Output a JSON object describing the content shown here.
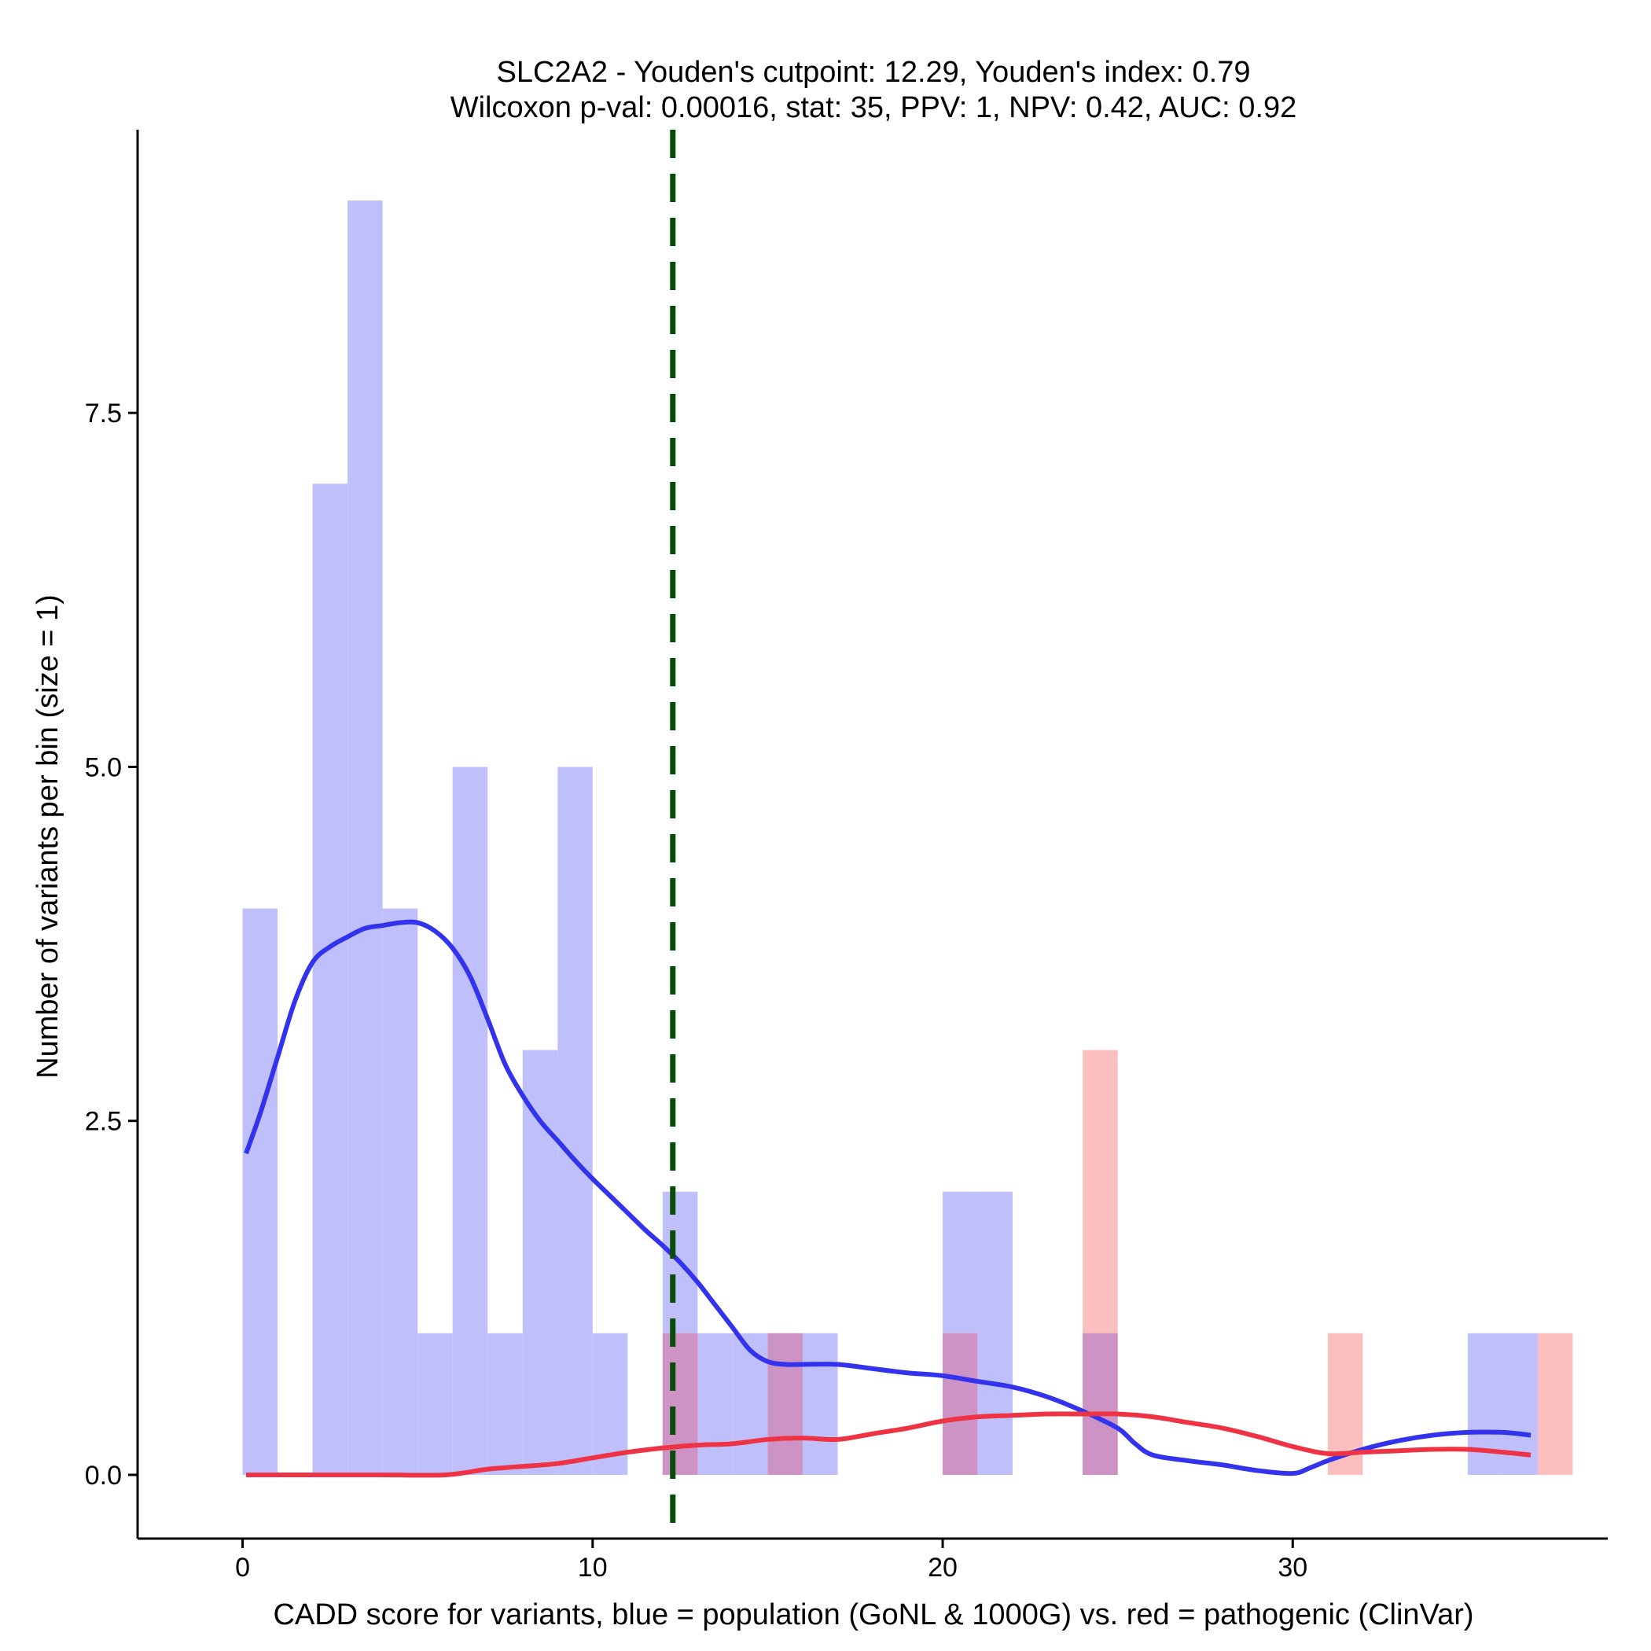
{
  "chart_data": {
    "type": "bar",
    "title_lines": [
      "SLC2A2 - Youden's cutpoint: 12.29, Youden's index: 0.79",
      "Wilcoxon p-val: 0.00016, stat: 35, PPV: 1, NPV: 0.42, AUC: 0.92"
    ],
    "xlabel": "CADD score for variants, blue = population (GoNL & 1000G) vs. red = pathogenic (ClinVar)",
    "ylabel": "Number of variants per bin (size = 1)",
    "xlim": [
      -3.0,
      39.0
    ],
    "ylim": [
      -0.45,
      9.5
    ],
    "x_ticks": [
      0,
      10,
      20,
      30
    ],
    "x_tick_labels": [
      "0",
      "10",
      "20",
      "30"
    ],
    "y_ticks": [
      0.0,
      2.5,
      5.0,
      7.5
    ],
    "y_tick_labels": [
      "0.0",
      "2.5",
      "5.0",
      "7.5"
    ],
    "bin_size": 1,
    "cutpoint": 12.29,
    "colors": {
      "population_bar": "#bfbffb",
      "pathogenic_bar": "#fcbfbf",
      "overlap_bar": "#cc93c4",
      "population_line": "#3333ee",
      "pathogenic_line": "#ee3344",
      "cutpoint_line": "#0a4a0a",
      "axis": "#000000"
    },
    "series": [
      {
        "name": "population (GoNL & 1000G)",
        "bins": [
          {
            "x0": 0,
            "count": 4
          },
          {
            "x0": 2,
            "count": 7
          },
          {
            "x0": 3,
            "count": 9
          },
          {
            "x0": 4,
            "count": 4
          },
          {
            "x0": 5,
            "count": 1
          },
          {
            "x0": 6,
            "count": 5
          },
          {
            "x0": 7,
            "count": 1
          },
          {
            "x0": 8,
            "count": 3
          },
          {
            "x0": 9,
            "count": 5
          },
          {
            "x0": 10,
            "count": 1
          },
          {
            "x0": 12,
            "count": 2
          },
          {
            "x0": 13,
            "count": 1
          },
          {
            "x0": 14,
            "count": 1
          },
          {
            "x0": 15,
            "count": 1
          },
          {
            "x0": 16,
            "count": 1
          },
          {
            "x0": 20,
            "count": 2
          },
          {
            "x0": 21,
            "count": 2
          },
          {
            "x0": 24,
            "count": 1
          },
          {
            "x0": 35,
            "count": 1
          },
          {
            "x0": 36,
            "count": 1
          }
        ],
        "density_curve": [
          [
            0.1,
            2.27
          ],
          [
            0.5,
            2.55
          ],
          [
            1.0,
            2.95
          ],
          [
            1.5,
            3.35
          ],
          [
            2.0,
            3.62
          ],
          [
            2.5,
            3.73
          ],
          [
            3.0,
            3.8
          ],
          [
            3.5,
            3.86
          ],
          [
            4.0,
            3.88
          ],
          [
            4.5,
            3.9
          ],
          [
            5.0,
            3.9
          ],
          [
            5.5,
            3.84
          ],
          [
            6.0,
            3.72
          ],
          [
            6.5,
            3.52
          ],
          [
            7.0,
            3.22
          ],
          [
            7.5,
            2.9
          ],
          [
            8.0,
            2.68
          ],
          [
            8.5,
            2.5
          ],
          [
            9.0,
            2.36
          ],
          [
            9.5,
            2.22
          ],
          [
            10.0,
            2.09
          ],
          [
            10.5,
            1.97
          ],
          [
            11.0,
            1.85
          ],
          [
            11.5,
            1.73
          ],
          [
            12.0,
            1.62
          ],
          [
            12.5,
            1.5
          ],
          [
            13.0,
            1.36
          ],
          [
            13.5,
            1.2
          ],
          [
            14.0,
            1.04
          ],
          [
            14.5,
            0.88
          ],
          [
            15.0,
            0.8
          ],
          [
            15.5,
            0.78
          ],
          [
            16.0,
            0.78
          ],
          [
            17.0,
            0.78
          ],
          [
            18.0,
            0.75
          ],
          [
            19.0,
            0.72
          ],
          [
            20.0,
            0.7
          ],
          [
            21.0,
            0.66
          ],
          [
            22.0,
            0.62
          ],
          [
            23.0,
            0.55
          ],
          [
            24.0,
            0.45
          ],
          [
            25.0,
            0.33
          ],
          [
            25.5,
            0.22
          ],
          [
            26.0,
            0.14
          ],
          [
            27.0,
            0.1
          ],
          [
            28.0,
            0.07
          ],
          [
            29.0,
            0.03
          ],
          [
            30.0,
            0.01
          ],
          [
            30.5,
            0.05
          ],
          [
            31.0,
            0.1
          ],
          [
            32.0,
            0.18
          ],
          [
            33.0,
            0.24
          ],
          [
            34.0,
            0.28
          ],
          [
            35.0,
            0.3
          ],
          [
            36.0,
            0.3
          ],
          [
            36.8,
            0.28
          ]
        ]
      },
      {
        "name": "pathogenic (ClinVar)",
        "bins": [
          {
            "x0": 12,
            "count": 1
          },
          {
            "x0": 15,
            "count": 1
          },
          {
            "x0": 20,
            "count": 1
          },
          {
            "x0": 24,
            "count": 3
          },
          {
            "x0": 31,
            "count": 1
          },
          {
            "x0": 37,
            "count": 1
          }
        ],
        "density_curve": [
          [
            0.1,
            0.0
          ],
          [
            2.0,
            0.0
          ],
          [
            4.0,
            0.0
          ],
          [
            5.8,
            0.0
          ],
          [
            7.0,
            0.04
          ],
          [
            8.0,
            0.06
          ],
          [
            9.0,
            0.08
          ],
          [
            10.0,
            0.12
          ],
          [
            11.0,
            0.16
          ],
          [
            12.0,
            0.19
          ],
          [
            13.0,
            0.21
          ],
          [
            14.0,
            0.22
          ],
          [
            15.0,
            0.25
          ],
          [
            16.0,
            0.26
          ],
          [
            17.0,
            0.25
          ],
          [
            18.0,
            0.29
          ],
          [
            19.0,
            0.33
          ],
          [
            20.0,
            0.38
          ],
          [
            21.0,
            0.41
          ],
          [
            22.0,
            0.42
          ],
          [
            23.0,
            0.43
          ],
          [
            24.0,
            0.43
          ],
          [
            25.0,
            0.43
          ],
          [
            26.0,
            0.41
          ],
          [
            27.0,
            0.37
          ],
          [
            28.0,
            0.33
          ],
          [
            29.0,
            0.27
          ],
          [
            30.0,
            0.2
          ],
          [
            31.0,
            0.15
          ],
          [
            32.0,
            0.16
          ],
          [
            33.0,
            0.17
          ],
          [
            34.0,
            0.18
          ],
          [
            35.0,
            0.18
          ],
          [
            36.0,
            0.16
          ],
          [
            36.8,
            0.14
          ]
        ]
      }
    ],
    "overlap_bins": [
      {
        "x0": 12,
        "count": 1
      },
      {
        "x0": 15,
        "count": 1
      },
      {
        "x0": 20,
        "count": 1
      },
      {
        "x0": 24,
        "count": 1
      }
    ]
  }
}
